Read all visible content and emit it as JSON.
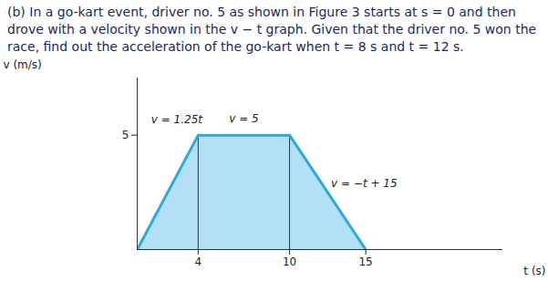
{
  "chart_data": {
    "type": "area",
    "title": "(b) In a go-kart event, driver no. 5 as shown in Figure 3 starts at s = 0 and then drove with a velocity shown in the v − t graph. Given that the driver no. 5 won the race, find out the acceleration of the go-kart when t = 8 s and t = 12 s.",
    "x": [
      0,
      4,
      10,
      15
    ],
    "values": [
      0,
      5,
      5,
      0
    ],
    "xlabel": "t (s)",
    "ylabel": "v (m/s)",
    "xlim": [
      0,
      24
    ],
    "ylim": [
      0,
      7.5
    ],
    "xticks": [
      4,
      10,
      15
    ],
    "yticks": [
      5
    ],
    "color": "#29abe2",
    "annotations": [
      "v = 1.25t",
      "v = 5",
      "v = −t + 15"
    ]
  }
}
